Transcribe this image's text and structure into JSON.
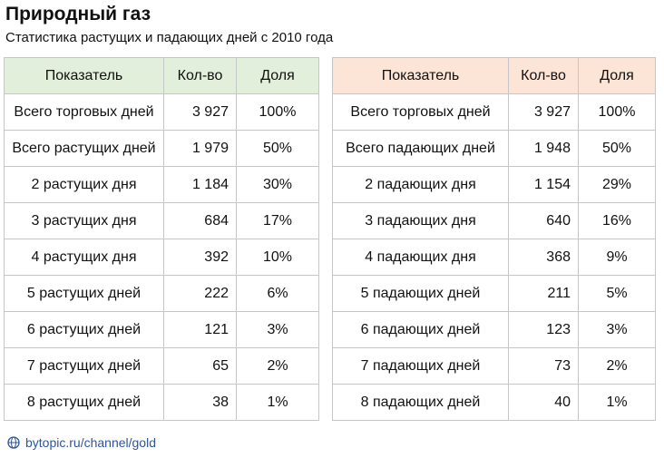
{
  "header": {
    "title": "Природный газ",
    "subtitle": "Статистика растущих и падающих дней с 2010 года"
  },
  "tables": [
    {
      "columns": [
        "Показатель",
        "Кол-во",
        "Доля"
      ],
      "rows": [
        [
          "Всего торговых дней",
          "3 927",
          "100%"
        ],
        [
          "Всего растущих дней",
          "1 979",
          "50%"
        ],
        [
          "2 растущих дня",
          "1 184",
          "30%"
        ],
        [
          "3 растущих дня",
          "684",
          "17%"
        ],
        [
          "4 растущих дня",
          "392",
          "10%"
        ],
        [
          "5 растущих дней",
          "222",
          "6%"
        ],
        [
          "6 растущих дней",
          "121",
          "3%"
        ],
        [
          "7 растущих дней",
          "65",
          "2%"
        ],
        [
          "8 растущих дней",
          "38",
          "1%"
        ]
      ]
    },
    {
      "columns": [
        "Показатель",
        "Кол-во",
        "Доля"
      ],
      "rows": [
        [
          "Всего торговых дней",
          "3 927",
          "100%"
        ],
        [
          "Всего падающих дней",
          "1 948",
          "50%"
        ],
        [
          "2 падающих дня",
          "1 154",
          "29%"
        ],
        [
          "3 падающих дня",
          "640",
          "16%"
        ],
        [
          "4 падающих дня",
          "368",
          "9%"
        ],
        [
          "5 падающих дней",
          "211",
          "5%"
        ],
        [
          "6 падающих дней",
          "123",
          "3%"
        ],
        [
          "7 падающих дней",
          "73",
          "2%"
        ],
        [
          "8 падающих дней",
          "40",
          "1%"
        ]
      ]
    }
  ],
  "footer": {
    "link": "bytopic.ru/channel/gold"
  }
}
